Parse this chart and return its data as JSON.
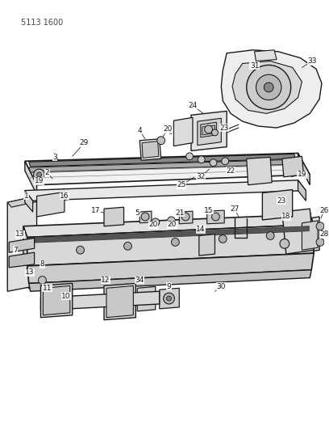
{
  "title_code": "5113 1600",
  "bg": "#ffffff",
  "lc": "#1a1a1a",
  "fc_light": "#e8e8e8",
  "fc_mid": "#d0d0d0",
  "fc_dark": "#b0b0b0"
}
